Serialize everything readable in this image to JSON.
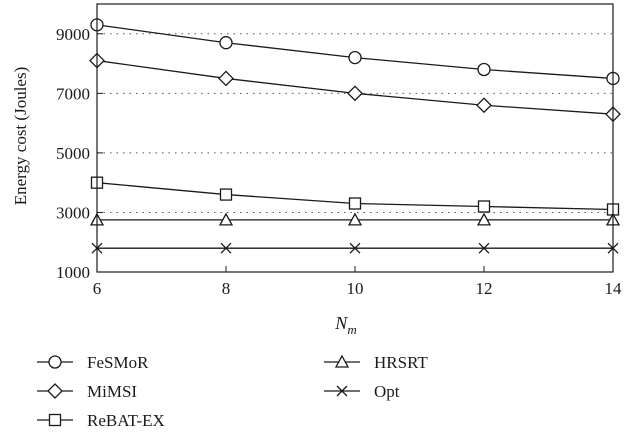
{
  "chart_data": {
    "type": "line",
    "title": "",
    "xlabel": "N",
    "xlabel_sub": "m",
    "ylabel": "Energy cost (Joules)",
    "x": [
      6,
      8,
      10,
      12,
      14
    ],
    "xlim": [
      6,
      14
    ],
    "ylim": [
      1000,
      10000
    ],
    "xticks": [
      "6",
      "8",
      "10",
      "12",
      "14"
    ],
    "yticks": [
      "1000",
      "3000",
      "5000",
      "7000",
      "9000"
    ],
    "ytick_values": [
      1000,
      3000,
      5000,
      7000,
      9000
    ],
    "grid": "dotted horizontal",
    "legend_position": "bottom",
    "series": [
      {
        "name": "FeSMoR",
        "marker": "circle",
        "values": [
          9300,
          8700,
          8200,
          7800,
          7500
        ]
      },
      {
        "name": "MiMSI",
        "marker": "diamond",
        "values": [
          8100,
          7500,
          7000,
          6600,
          6300
        ]
      },
      {
        "name": "ReBAT-EX",
        "marker": "square",
        "values": [
          4000,
          3600,
          3300,
          3200,
          3100
        ]
      },
      {
        "name": "HRSRT",
        "marker": "triangle",
        "values": [
          2750,
          2750,
          2750,
          2750,
          2750
        ]
      },
      {
        "name": "Opt",
        "marker": "x",
        "values": [
          1800,
          1800,
          1800,
          1800,
          1800
        ]
      }
    ]
  }
}
